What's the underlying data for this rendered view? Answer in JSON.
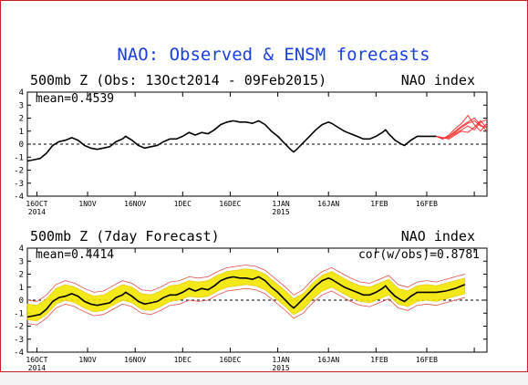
{
  "page": {
    "title": "NAO: Observed & ENSM forecasts",
    "colors": {
      "frame": "#cc2020",
      "title": "#1a3fe0",
      "observed": "#000000",
      "forecast": "#ff3333",
      "spread": "#f2e600",
      "spread_edge": "#e8c800",
      "ensemble_outline": "#e05050"
    }
  },
  "chart_data": [
    {
      "type": "line",
      "id": "observed",
      "subtitle": "500mb Z (Obs: 13Oct2014 - 09Feb2015)",
      "right_label": "NAO index",
      "stat": "mean=0.4539",
      "ylim": [
        -4,
        4
      ],
      "yticks": [
        4,
        3,
        2,
        1,
        0,
        -1,
        -2,
        -3,
        -4
      ],
      "x_tick_days": [
        0,
        16,
        31,
        46,
        61,
        76,
        92,
        107,
        123,
        138
      ],
      "x_tick_labels": [
        "16OCT",
        "1NOV",
        "16NOV",
        "1DEC",
        "16DEC",
        "1JAN",
        "16JAN",
        "1FEB",
        "16FEB"
      ],
      "x_tick_label_days": [
        0,
        16,
        31,
        46,
        61,
        77,
        92,
        108,
        123
      ],
      "year_labels": [
        {
          "day": 0,
          "text": "2014"
        },
        {
          "day": 77,
          "text": "2015"
        }
      ],
      "xlim_days": [
        -3,
        131
      ],
      "series": [
        {
          "role": "observed",
          "points": [
            [
              -3,
              -1.3
            ],
            [
              -1,
              -1.2
            ],
            [
              1,
              -1.1
            ],
            [
              3,
              -0.7
            ],
            [
              5,
              -0.1
            ],
            [
              7,
              0.2
            ],
            [
              9,
              0.3
            ],
            [
              11,
              0.5
            ],
            [
              13,
              0.3
            ],
            [
              15,
              -0.1
            ],
            [
              17,
              -0.3
            ],
            [
              19,
              -0.4
            ],
            [
              21,
              -0.3
            ],
            [
              23,
              -0.2
            ],
            [
              25,
              0.2
            ],
            [
              27,
              0.4
            ],
            [
              28,
              0.6
            ],
            [
              30,
              0.3
            ],
            [
              32,
              -0.1
            ],
            [
              34,
              -0.3
            ],
            [
              36,
              -0.2
            ],
            [
              38,
              -0.1
            ],
            [
              40,
              0.2
            ],
            [
              42,
              0.4
            ],
            [
              44,
              0.4
            ],
            [
              46,
              0.6
            ],
            [
              48,
              0.9
            ],
            [
              50,
              0.7
            ],
            [
              52,
              0.9
            ],
            [
              54,
              0.8
            ],
            [
              56,
              1.1
            ],
            [
              58,
              1.5
            ],
            [
              60,
              1.7
            ],
            [
              62,
              1.8
            ],
            [
              64,
              1.7
            ],
            [
              66,
              1.7
            ],
            [
              68,
              1.6
            ],
            [
              70,
              1.8
            ],
            [
              72,
              1.5
            ],
            [
              74,
              1.0
            ],
            [
              76,
              0.6
            ],
            [
              78,
              0.1
            ],
            [
              80,
              -0.4
            ],
            [
              81,
              -0.6
            ],
            [
              82,
              -0.4
            ],
            [
              84,
              0.1
            ],
            [
              86,
              0.6
            ],
            [
              88,
              1.1
            ],
            [
              90,
              1.5
            ],
            [
              92,
              1.7
            ],
            [
              93,
              1.6
            ],
            [
              95,
              1.3
            ],
            [
              97,
              1.0
            ],
            [
              99,
              0.8
            ],
            [
              101,
              0.6
            ],
            [
              103,
              0.4
            ],
            [
              105,
              0.4
            ],
            [
              107,
              0.6
            ],
            [
              109,
              0.9
            ],
            [
              110,
              1.1
            ],
            [
              111,
              0.8
            ],
            [
              113,
              0.3
            ],
            [
              115,
              0.0
            ],
            [
              116,
              -0.1
            ],
            [
              118,
              0.3
            ],
            [
              120,
              0.6
            ],
            [
              123,
              0.6
            ],
            [
              126,
              0.6
            ]
          ]
        },
        {
          "role": "ensemble_forecasts",
          "members": [
            [
              [
                126,
                0.6
              ],
              [
                128,
                0.4
              ],
              [
                130,
                0.6
              ],
              [
                132,
                0.9
              ],
              [
                134,
                1.3
              ],
              [
                136,
                1.6
              ],
              [
                138,
                1.8
              ],
              [
                140,
                1.4
              ],
              [
                142,
                1.3
              ]
            ],
            [
              [
                126,
                0.6
              ],
              [
                128,
                0.5
              ],
              [
                130,
                0.5
              ],
              [
                132,
                0.8
              ],
              [
                134,
                1.1
              ],
              [
                136,
                1.4
              ],
              [
                138,
                1.1
              ],
              [
                140,
                1.7
              ],
              [
                142,
                1.9
              ]
            ],
            [
              [
                126,
                0.6
              ],
              [
                128,
                0.4
              ],
              [
                130,
                0.7
              ],
              [
                132,
                1.2
              ],
              [
                134,
                1.6
              ],
              [
                136,
                2.2
              ],
              [
                138,
                1.5
              ],
              [
                140,
                1.0
              ],
              [
                142,
                1.6
              ]
            ],
            [
              [
                126,
                0.6
              ],
              [
                128,
                0.5
              ],
              [
                130,
                0.4
              ],
              [
                132,
                0.7
              ],
              [
                134,
                1.0
              ],
              [
                136,
                0.9
              ],
              [
                138,
                1.3
              ],
              [
                140,
                1.8
              ],
              [
                142,
                1.2
              ]
            ],
            [
              [
                126,
                0.6
              ],
              [
                128,
                0.4
              ],
              [
                130,
                0.6
              ],
              [
                132,
                1.0
              ],
              [
                134,
                1.4
              ],
              [
                136,
                1.7
              ],
              [
                138,
                2.0
              ],
              [
                140,
                1.5
              ],
              [
                142,
                1.0
              ]
            ]
          ]
        }
      ]
    },
    {
      "type": "line",
      "id": "forecast",
      "subtitle": "500mb Z (7day Forecast)",
      "right_label": "NAO index",
      "stat": "mean=0.4414",
      "stat_right": "cor(w/obs)=0.8781",
      "ylim": [
        -4,
        4
      ],
      "yticks": [
        4,
        3,
        2,
        1,
        0,
        -1,
        -2,
        -3,
        -4
      ],
      "series": [
        {
          "role": "observed",
          "points": [
            [
              -3,
              -1.3
            ],
            [
              -1,
              -1.2
            ],
            [
              1,
              -1.1
            ],
            [
              3,
              -0.7
            ],
            [
              5,
              -0.1
            ],
            [
              7,
              0.2
            ],
            [
              9,
              0.3
            ],
            [
              11,
              0.5
            ],
            [
              13,
              0.3
            ],
            [
              15,
              -0.1
            ],
            [
              17,
              -0.3
            ],
            [
              19,
              -0.4
            ],
            [
              21,
              -0.3
            ],
            [
              23,
              -0.2
            ],
            [
              25,
              0.2
            ],
            [
              27,
              0.4
            ],
            [
              28,
              0.6
            ],
            [
              30,
              0.3
            ],
            [
              32,
              -0.1
            ],
            [
              34,
              -0.3
            ],
            [
              36,
              -0.2
            ],
            [
              38,
              -0.1
            ],
            [
              40,
              0.2
            ],
            [
              42,
              0.4
            ],
            [
              44,
              0.4
            ],
            [
              46,
              0.6
            ],
            [
              48,
              0.9
            ],
            [
              50,
              0.7
            ],
            [
              52,
              0.9
            ],
            [
              54,
              0.8
            ],
            [
              56,
              1.1
            ],
            [
              58,
              1.5
            ],
            [
              60,
              1.7
            ],
            [
              62,
              1.8
            ],
            [
              64,
              1.7
            ],
            [
              66,
              1.7
            ],
            [
              68,
              1.6
            ],
            [
              70,
              1.8
            ],
            [
              72,
              1.5
            ],
            [
              74,
              1.0
            ],
            [
              76,
              0.6
            ],
            [
              78,
              0.1
            ],
            [
              80,
              -0.4
            ],
            [
              81,
              -0.6
            ],
            [
              82,
              -0.4
            ],
            [
              84,
              0.1
            ],
            [
              86,
              0.6
            ],
            [
              88,
              1.1
            ],
            [
              90,
              1.5
            ],
            [
              92,
              1.7
            ],
            [
              93,
              1.6
            ],
            [
              95,
              1.3
            ],
            [
              97,
              1.0
            ],
            [
              99,
              0.8
            ],
            [
              101,
              0.6
            ],
            [
              103,
              0.4
            ],
            [
              105,
              0.4
            ],
            [
              107,
              0.6
            ],
            [
              109,
              0.9
            ],
            [
              110,
              1.1
            ],
            [
              111,
              0.8
            ],
            [
              113,
              0.3
            ],
            [
              115,
              0.0
            ],
            [
              116,
              -0.1
            ],
            [
              118,
              0.3
            ],
            [
              120,
              0.6
            ],
            [
              123,
              0.6
            ],
            [
              126,
              0.6
            ],
            [
              129,
              0.7
            ],
            [
              132,
              0.9
            ],
            [
              135,
              1.2
            ]
          ]
        },
        {
          "role": "ensemble_mean_7day",
          "points": [
            [
              -3,
              -0.9
            ],
            [
              0,
              -1.0
            ],
            [
              3,
              -0.5
            ],
            [
              6,
              0.3
            ],
            [
              9,
              0.6
            ],
            [
              12,
              0.4
            ],
            [
              15,
              0.0
            ],
            [
              18,
              -0.3
            ],
            [
              21,
              -0.2
            ],
            [
              24,
              0.2
            ],
            [
              27,
              0.6
            ],
            [
              30,
              0.4
            ],
            [
              33,
              -0.1
            ],
            [
              36,
              -0.2
            ],
            [
              39,
              0.1
            ],
            [
              42,
              0.5
            ],
            [
              45,
              0.6
            ],
            [
              48,
              0.9
            ],
            [
              51,
              0.8
            ],
            [
              54,
              0.9
            ],
            [
              57,
              1.3
            ],
            [
              60,
              1.6
            ],
            [
              63,
              1.7
            ],
            [
              66,
              1.8
            ],
            [
              69,
              1.7
            ],
            [
              72,
              1.4
            ],
            [
              75,
              0.8
            ],
            [
              78,
              0.2
            ],
            [
              81,
              -0.5
            ],
            [
              84,
              -0.1
            ],
            [
              87,
              0.7
            ],
            [
              90,
              1.3
            ],
            [
              93,
              1.6
            ],
            [
              96,
              1.2
            ],
            [
              99,
              0.8
            ],
            [
              102,
              0.5
            ],
            [
              105,
              0.4
            ],
            [
              108,
              0.7
            ],
            [
              111,
              1.0
            ],
            [
              114,
              0.3
            ],
            [
              117,
              0.1
            ],
            [
              120,
              0.5
            ],
            [
              123,
              0.6
            ],
            [
              126,
              0.5
            ],
            [
              129,
              0.7
            ],
            [
              132,
              0.9
            ],
            [
              135,
              1.1
            ]
          ],
          "spread_width": 0.6
        }
      ]
    }
  ]
}
